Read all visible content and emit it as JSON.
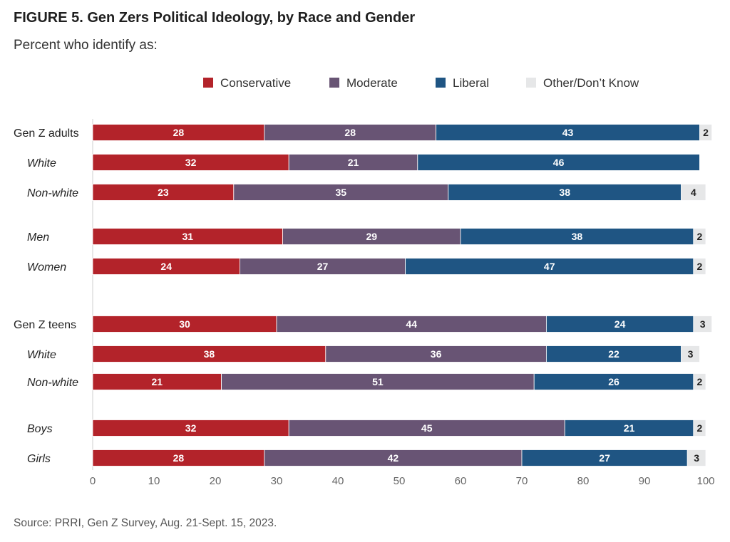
{
  "header": {
    "title": "FIGURE 5.  Gen Zers Political Ideology, by Race and Gender",
    "subtitle": "Percent who identify as:"
  },
  "footer": {
    "source": "Source: PRRI, Gen Z Survey, Aug. 21-Sept. 15, 2023."
  },
  "chart_data": {
    "type": "bar",
    "orientation": "horizontal",
    "stacked": true,
    "categories": [
      "Gen Z adults",
      "White",
      "Non-white",
      "Men",
      "Women",
      "Gen Z teens",
      "White",
      "Non-white",
      "Boys",
      "Girls"
    ],
    "category_style": [
      "group",
      "sub",
      "sub",
      "sub",
      "sub",
      "group",
      "sub",
      "sub",
      "sub",
      "sub"
    ],
    "series": [
      {
        "name": "Conservative",
        "color": "#b3232a",
        "values": [
          28,
          32,
          23,
          31,
          24,
          30,
          38,
          21,
          32,
          28
        ]
      },
      {
        "name": "Moderate",
        "color": "#685474",
        "values": [
          28,
          21,
          35,
          29,
          27,
          44,
          36,
          51,
          45,
          42
        ]
      },
      {
        "name": "Liberal",
        "color": "#1f5583",
        "values": [
          43,
          46,
          38,
          38,
          47,
          24,
          22,
          26,
          21,
          27
        ]
      },
      {
        "name": "Other/Don’t Know",
        "color": "#e6e7e8",
        "values": [
          2,
          null,
          4,
          2,
          2,
          3,
          3,
          2,
          2,
          3
        ]
      }
    ],
    "xlim": [
      0,
      100
    ],
    "xticks": [
      0,
      10,
      20,
      30,
      40,
      50,
      60,
      70,
      80,
      90,
      100
    ],
    "legend_position": "top",
    "grid": false
  }
}
